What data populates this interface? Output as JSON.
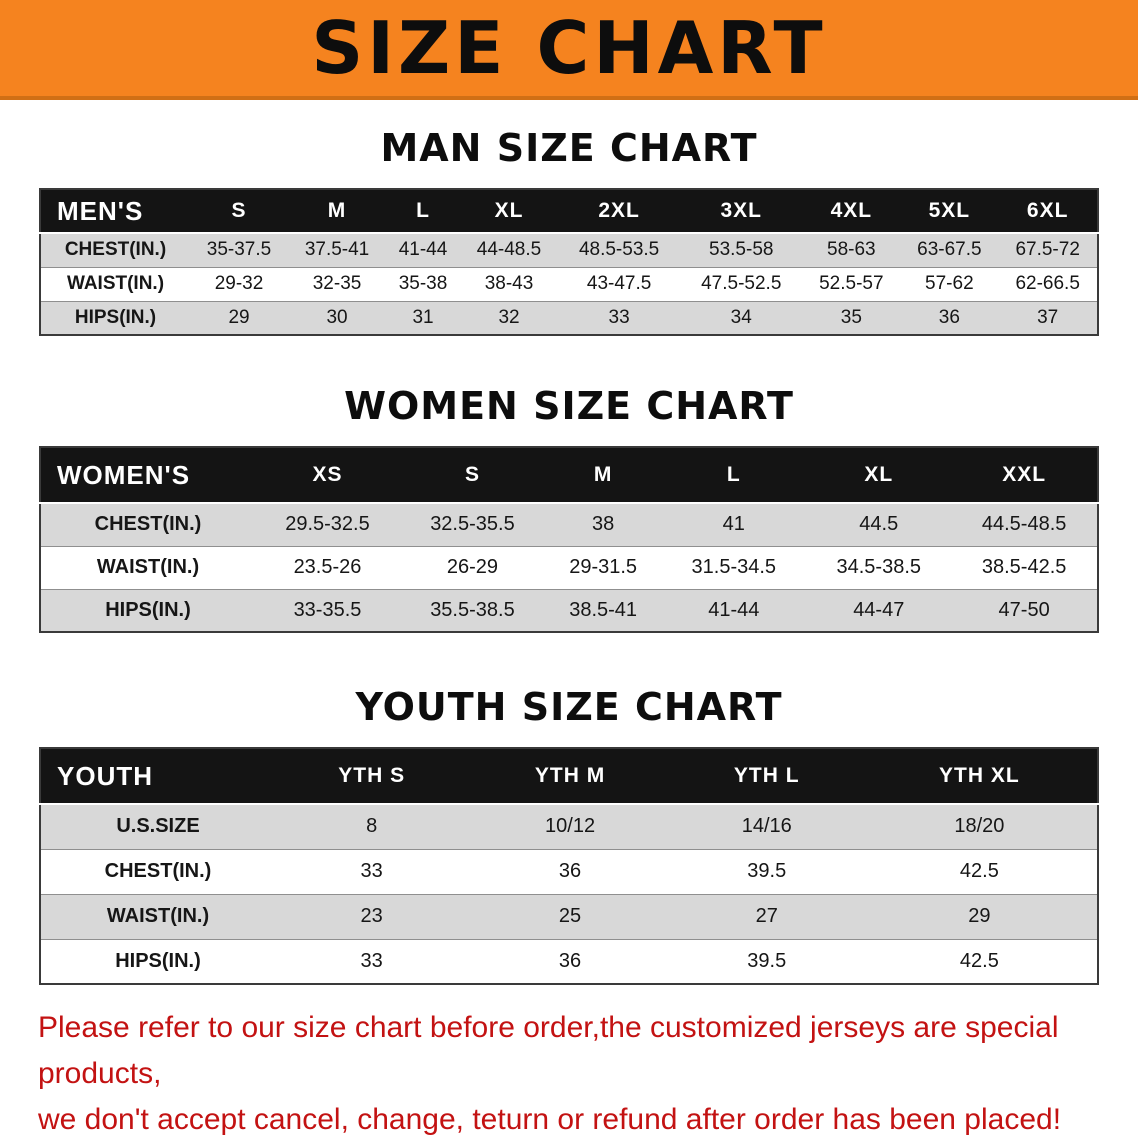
{
  "banner": {
    "title": "SIZE CHART",
    "bg_color": "#f5831f"
  },
  "colors": {
    "header_bar": "#141414",
    "alt_row": "#d8d8d8",
    "notice_text": "#c31212"
  },
  "sections": [
    {
      "id": "men",
      "heading": "MAN SIZE CHART",
      "table": {
        "corner": "MEN'S",
        "columns": [
          "S",
          "M",
          "L",
          "XL",
          "2XL",
          "3XL",
          "4XL",
          "5XL",
          "6XL"
        ],
        "rows": [
          {
            "label": "CHEST(IN.)",
            "values": [
              "35-37.5",
              "37.5-41",
              "41-44",
              "44-48.5",
              "48.5-53.5",
              "53.5-58",
              "58-63",
              "63-67.5",
              "67.5-72"
            ]
          },
          {
            "label": "WAIST(IN.)",
            "values": [
              "29-32",
              "32-35",
              "35-38",
              "38-43",
              "43-47.5",
              "47.5-52.5",
              "52.5-57",
              "57-62",
              "62-66.5"
            ]
          },
          {
            "label": "HIPS(IN.)",
            "values": [
              "29",
              "30",
              "31",
              "32",
              "33",
              "34",
              "35",
              "36",
              "37"
            ]
          }
        ]
      }
    },
    {
      "id": "women",
      "heading": "WOMEN SIZE CHART",
      "table": {
        "corner": "WOMEN'S",
        "columns": [
          "XS",
          "S",
          "M",
          "L",
          "XL",
          "XXL"
        ],
        "rows": [
          {
            "label": "CHEST(IN.)",
            "values": [
              "29.5-32.5",
              "32.5-35.5",
              "38",
              "41",
              "44.5",
              "44.5-48.5"
            ]
          },
          {
            "label": "WAIST(IN.)",
            "values": [
              "23.5-26",
              "26-29",
              "29-31.5",
              "31.5-34.5",
              "34.5-38.5",
              "38.5-42.5"
            ]
          },
          {
            "label": "HIPS(IN.)",
            "values": [
              "33-35.5",
              "35.5-38.5",
              "38.5-41",
              "41-44",
              "44-47",
              "47-50"
            ]
          }
        ]
      }
    },
    {
      "id": "youth",
      "heading": "YOUTH SIZE CHART",
      "table": {
        "corner": "YOUTH",
        "columns": [
          "YTH S",
          "YTH M",
          "YTH L",
          "YTH XL"
        ],
        "rows": [
          {
            "label": "U.S.SIZE",
            "values": [
              "8",
              "10/12",
              "14/16",
              "18/20"
            ]
          },
          {
            "label": "CHEST(IN.)",
            "values": [
              "33",
              "36",
              "39.5",
              "42.5"
            ]
          },
          {
            "label": "WAIST(IN.)",
            "values": [
              "23",
              "25",
              "27",
              "29"
            ]
          },
          {
            "label": "HIPS(IN.)",
            "values": [
              "33",
              "36",
              "39.5",
              "42.5"
            ]
          }
        ]
      }
    }
  ],
  "notice": {
    "line1": "Please refer to our size chart before order,the customized jerseys are special products,",
    "line2": "we don't accept cancel, change, teturn or refund after order has been placed!"
  }
}
